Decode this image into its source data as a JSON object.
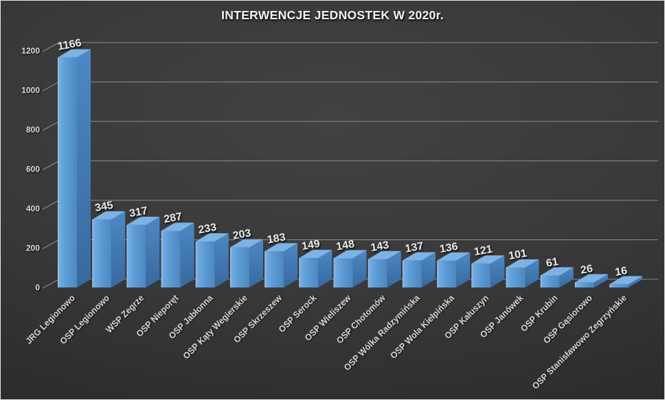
{
  "title": "INTERWENCJE JEDNOSTEK W 2020r.",
  "chart_data": {
    "type": "bar",
    "title": "INTERWENCJE JEDNOSTEK W 2020r.",
    "categories": [
      "JRG Legionowo",
      "OSP Legionowo",
      "WSP Zegrze",
      "OSP Nieporęt",
      "OSP Jabłonna",
      "OSP Kąty Wegierskie",
      "OSP Skrzeszew",
      "OSP Serock",
      "OSP Wieliszew",
      "OSP Chotomów",
      "OSP Wólka Radzymińska",
      "OSP Wola Kiełpińska",
      "OSP Kałuszyn",
      "OSP Janówek",
      "OSP Krubin",
      "OSP Gąsiorowo",
      "OSP Stanisławowo Zegrzyńskie"
    ],
    "values": [
      1166,
      345,
      317,
      287,
      233,
      203,
      183,
      149,
      148,
      143,
      137,
      136,
      121,
      101,
      61,
      26,
      16
    ],
    "xlabel": "",
    "ylabel": "",
    "ylim": [
      0,
      1200
    ],
    "yticks": [
      0,
      200,
      400,
      600,
      800,
      1000,
      1200
    ],
    "grid": true,
    "legend": "none",
    "style": "3d-column",
    "colors": {
      "bar_front": "#5b9bd5",
      "bar_front_highlight": "#9fc7f0",
      "bar_front_shade": "#4d88c0",
      "bar_side_top": "#4d88c4",
      "bar_side_bottom": "#38699f",
      "bar_top": "#7db2e4",
      "gridline": "#8c8c8c",
      "tick_text": "#dcdcdc",
      "value_text": "#ededed",
      "category_text": "#d9d9d9",
      "title_text": "#f2f2f2"
    }
  }
}
